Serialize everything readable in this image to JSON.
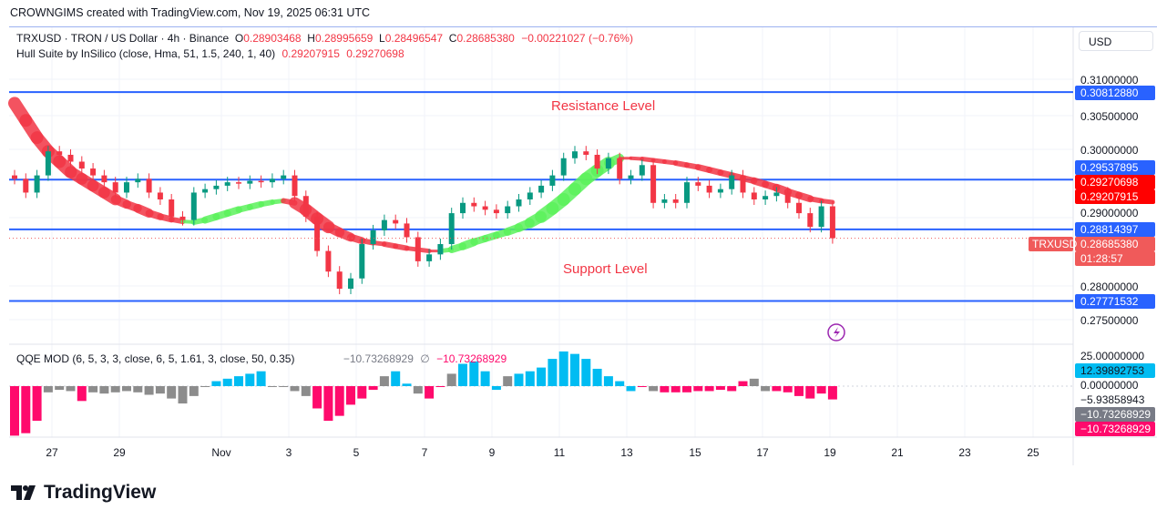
{
  "caption": "CROWNGIMS created with TradingView.com, Nov 19, 2025 06:31 UTC",
  "legend": {
    "symbol": "TRXUSD · TRON / US Dollar · 4h · Binance",
    "o_label": "O",
    "o": "0.28903468",
    "h_label": "H",
    "h": "0.28995659",
    "l_label": "L",
    "l": "0.28496547",
    "c_label": "C",
    "c": "0.28685380",
    "change": "−0.00221027 (−0.76%)",
    "hull_name": "Hull Suite by InSilico (close, Hma, 51, 1.5, 240, 1, 40)",
    "hull_v1": "0.29207915",
    "hull_v2": "0.29270698",
    "qqe_name": "QQE MOD (6, 5, 3, 3, close, 6, 5, 1.61, 3, close, 50, 0.35)",
    "qqe_v1": "−10.73268929",
    "qqe_sep": "∅",
    "qqe_v2": "−10.73268929"
  },
  "currency": "USD",
  "price_axis": [
    "0.31000000",
    "0.30500000",
    "0.30000000",
    "0.29000000",
    "0.28000000",
    "0.27500000"
  ],
  "price_tags": [
    {
      "text": "0.30812880",
      "color": "#2962ff"
    },
    {
      "text": "0.29537895",
      "color": "#2962ff"
    },
    {
      "text": "0.29270698",
      "color": "#ff0000"
    },
    {
      "text": "0.29207915",
      "color": "#ff0000"
    },
    {
      "text": "0.28814397",
      "color": "#2962ff"
    },
    {
      "text": "0.28685380",
      "color": "#f05a5a"
    },
    {
      "text": "01:28:57",
      "color": "#f05a5a"
    },
    {
      "text": "0.27771532",
      "color": "#2962ff"
    }
  ],
  "symbol_tag": "TRXUSD",
  "qqe_axis": [
    "25.00000000",
    "0.00000000",
    "−5.93858943"
  ],
  "qqe_tags": [
    {
      "text": "12.39892753",
      "color": "#00bcf2",
      "fg": "#131722"
    },
    {
      "text": "−10.73268929",
      "color": "#787b86",
      "fg": "#ffffff"
    },
    {
      "text": "−10.73268929",
      "color": "#ff0a6c",
      "fg": "#ffffff"
    }
  ],
  "x_axis": [
    "27",
    "29",
    "Nov",
    "3",
    "5",
    "7",
    "9",
    "11",
    "13",
    "15",
    "17",
    "19",
    "21",
    "23",
    "25"
  ],
  "annotations": {
    "resistance": "Resistance Level",
    "support": "Support Level"
  },
  "brand": "TradingView",
  "colors": {
    "up": "#089981",
    "down": "#f23645",
    "hull_up": "#5cf25c",
    "hull_down": "#f23645",
    "level": "#2962ff",
    "qqe_blue": "#00bcf2",
    "qqe_gray": "#8c8c8c",
    "qqe_pink": "#ff0a6c"
  },
  "chart_data": {
    "type": "candlestick",
    "levels": [
      0.3081288,
      0.29537895,
      0.28814397,
      0.27771532
    ],
    "ylim": [
      0.2725,
      0.3125
    ],
    "first_open": 0.296,
    "close": [
      0.2955,
      0.2935,
      0.296,
      0.2995,
      0.299,
      0.298,
      0.297,
      0.296,
      0.295,
      0.2935,
      0.295,
      0.2955,
      0.2935,
      0.2925,
      0.29,
      0.2895,
      0.2935,
      0.294,
      0.2945,
      0.295,
      0.2948,
      0.2952,
      0.295,
      0.2955,
      0.296,
      0.293,
      0.29,
      0.285,
      0.282,
      0.2795,
      0.281,
      0.286,
      0.288,
      0.2895,
      0.289,
      0.287,
      0.2835,
      0.2845,
      0.286,
      0.2905,
      0.292,
      0.2915,
      0.291,
      0.2905,
      0.2915,
      0.2925,
      0.2935,
      0.2945,
      0.296,
      0.2985,
      0.2995,
      0.299,
      0.297,
      0.2985,
      0.2955,
      0.296,
      0.2975,
      0.292,
      0.2925,
      0.292,
      0.295,
      0.2945,
      0.2935,
      0.294,
      0.296,
      0.2935,
      0.2925,
      0.293,
      0.2935,
      0.292,
      0.2905,
      0.2885,
      0.2915,
      0.2868538
    ],
    "hull": [
      0.3065,
      0.304,
      0.3015,
      0.2995,
      0.298,
      0.2965,
      0.2955,
      0.2945,
      0.2935,
      0.2925,
      0.2918,
      0.2912,
      0.2905,
      0.29,
      0.2896,
      0.2893,
      0.2892,
      0.2895,
      0.29,
      0.2905,
      0.291,
      0.2914,
      0.2918,
      0.2921,
      0.2923,
      0.292,
      0.291,
      0.2897,
      0.2885,
      0.2877,
      0.287,
      0.2865,
      0.2862,
      0.286,
      0.2857,
      0.2854,
      0.2852,
      0.285,
      0.285,
      0.2852,
      0.2857,
      0.2863,
      0.2868,
      0.2873,
      0.2878,
      0.2884,
      0.2891,
      0.29,
      0.2912,
      0.2925,
      0.294,
      0.2955,
      0.2967,
      0.2978,
      0.2985,
      0.2985,
      0.2984,
      0.2982,
      0.298,
      0.2978,
      0.2975,
      0.2972,
      0.2968,
      0.2964,
      0.296,
      0.2956,
      0.2952,
      0.2947,
      0.2942,
      0.2936,
      0.2931,
      0.2926,
      0.2923,
      0.2921
    ],
    "hull_trend": "dddddddddddddddduuuuuuuuudddddddddddddduuuuuuuuuuuuuuuuddddddddddddddddddd",
    "qqe": [
      -40,
      -38,
      -28,
      -5,
      -3,
      -4,
      -12,
      -5,
      -6,
      -5,
      -4,
      -5,
      -7,
      -6,
      -10,
      -14,
      -8,
      0,
      4,
      6,
      8,
      10,
      12,
      0,
      0,
      -4,
      -8,
      -18,
      -28,
      -24,
      -15,
      -10,
      -3,
      8,
      12,
      2,
      -6,
      -10,
      0,
      10,
      18,
      20,
      12,
      -3,
      8,
      10,
      12,
      15,
      22,
      28,
      26,
      22,
      14,
      8,
      4,
      -4,
      0,
      -4,
      -5,
      -5,
      -5,
      -4,
      -4,
      -3,
      -4,
      4,
      6,
      -4,
      -4,
      -5,
      -8,
      -10,
      -6,
      -10.73268929
    ],
    "qqe_state": "pppgggpgggggggggggbbbbbggggppppppgbbgppgbbbbgbbbbbbbbbbbpgppppppppggppppppp",
    "qqe_ylim": [
      -45,
      35
    ]
  }
}
